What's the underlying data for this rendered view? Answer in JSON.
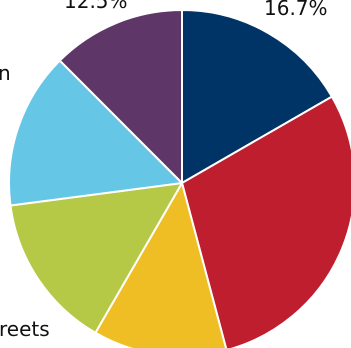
{
  "chart_data": {
    "type": "pie",
    "slices": [
      {
        "label": "",
        "value": 16.7,
        "color": "#003366"
      },
      {
        "label": "",
        "value": 29.2,
        "color": "#BE1E2D"
      },
      {
        "label": "",
        "value": 12.5,
        "color": "#EFBE25"
      },
      {
        "label": "",
        "value": 14.6,
        "color": "#B5C947"
      },
      {
        "label": "",
        "value": 14.6,
        "color": "#66C6E6"
      },
      {
        "label": "",
        "value": 12.5,
        "color": "#5E3768"
      }
    ],
    "visible_labels": [
      {
        "text": "16.7%",
        "slice": 0
      },
      {
        "text": "12.5%",
        "slice": 5
      },
      {
        "text": "n",
        "slice": 4
      },
      {
        "text": "reets",
        "slice": 3
      }
    ]
  }
}
